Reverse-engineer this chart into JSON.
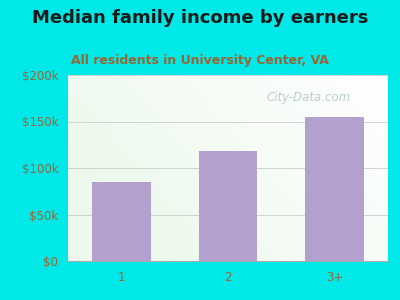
{
  "categories": [
    "1",
    "2",
    "3+"
  ],
  "values": [
    85000,
    118000,
    155000
  ],
  "bar_color": "#b3a0cc",
  "title": "Median family income by earners",
  "subtitle": "All residents in University Center, VA",
  "ylim": [
    0,
    200000
  ],
  "yticks": [
    0,
    50000,
    100000,
    150000,
    200000
  ],
  "ytick_labels": [
    "$0",
    "$50k",
    "$100k",
    "$150k",
    "$200k"
  ],
  "outer_bg": "#00e8e8",
  "title_color": "#1a1a1a",
  "subtitle_color": "#996633",
  "tick_color": "#996633",
  "watermark": "City-Data.com",
  "watermark_color": "#b0c4c4",
  "title_fontsize": 13,
  "subtitle_fontsize": 9,
  "tick_fontsize": 8.5,
  "grid_color": "#cccccc",
  "plot_bg_left": "#d8edd8",
  "plot_bg_right": "#f5faf5"
}
